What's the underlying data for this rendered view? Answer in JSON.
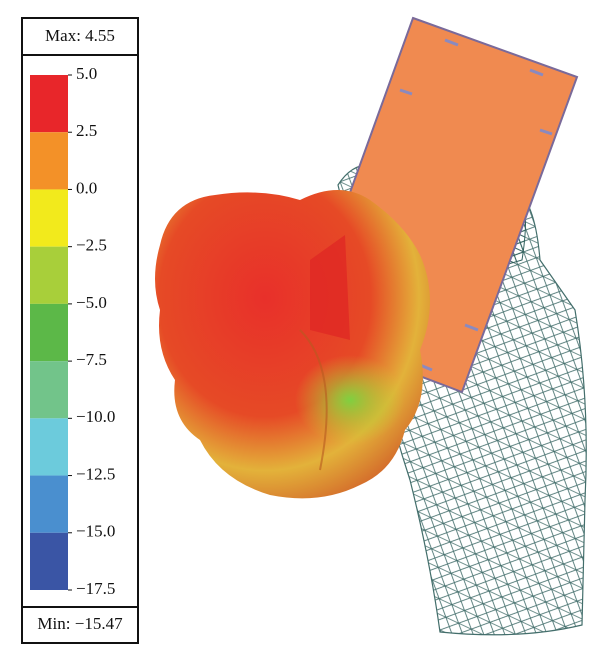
{
  "legend": {
    "max_label": "Max: 4.55",
    "min_label": "Min: −15.47",
    "ticks": [
      {
        "value": 5.0,
        "label": "5.0"
      },
      {
        "value": 2.5,
        "label": "2.5"
      },
      {
        "value": 0.0,
        "label": "0.0"
      },
      {
        "value": -2.5,
        "label": "−2.5"
      },
      {
        "value": -5.0,
        "label": "−5.0"
      },
      {
        "value": -7.5,
        "label": "−7.5"
      },
      {
        "value": -10.0,
        "label": "−10.0"
      },
      {
        "value": -12.5,
        "label": "−12.5"
      },
      {
        "value": -15.0,
        "label": "−15.0"
      },
      {
        "value": -17.5,
        "label": "−17.5"
      }
    ],
    "colors": [
      "#e8262a",
      "#f39128",
      "#f2ea1c",
      "#a8cf3a",
      "#5cb848",
      "#72c48a",
      "#6ccbdc",
      "#4a8fcf",
      "#3a55a5"
    ]
  }
}
